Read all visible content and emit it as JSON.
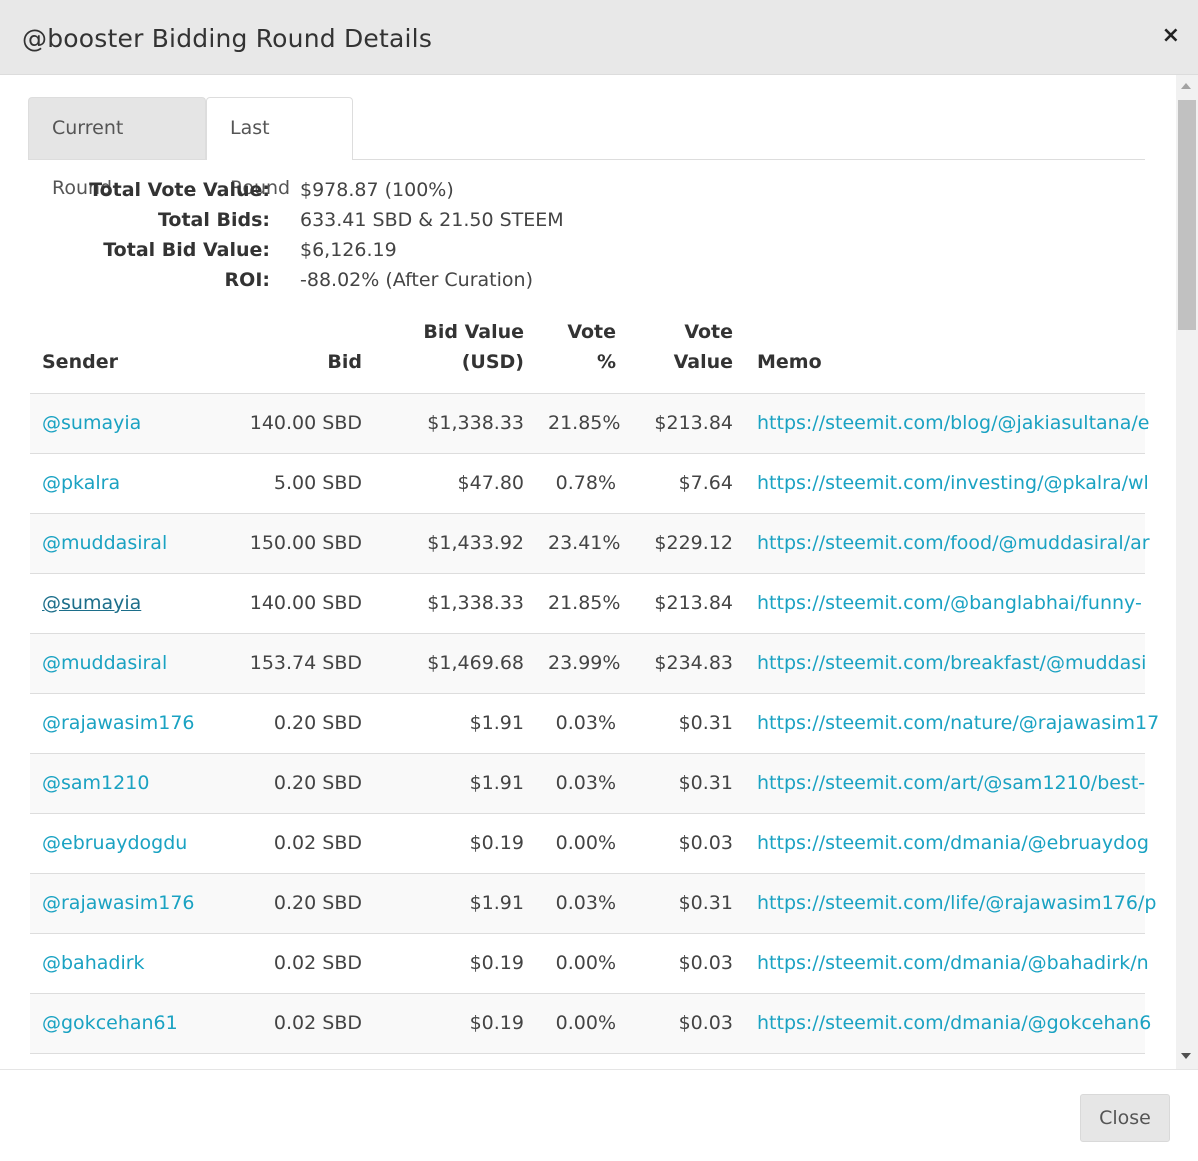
{
  "modal": {
    "title": "@booster Bidding Round Details",
    "close_symbol": "×"
  },
  "tabs": [
    {
      "label": "Current Round"
    },
    {
      "label": "Last Round"
    }
  ],
  "summary": [
    {
      "label": "Total Vote Value:",
      "value": "$978.87 (100%)"
    },
    {
      "label": "Total Bids:",
      "value": "633.41 SBD & 21.50 STEEM"
    },
    {
      "label": "Total Bid Value:",
      "value": "$6,126.19"
    },
    {
      "label": "ROI:",
      "value": "-88.02% (After Curation)"
    }
  ],
  "table": {
    "headers": {
      "sender": "Sender",
      "bid": "Bid",
      "bid_value_1": "Bid Value",
      "bid_value_2": "(USD)",
      "vote_pct": "Vote %",
      "vote_value_1": "Vote",
      "vote_value_2": "Value",
      "memo": "Memo"
    },
    "rows": [
      {
        "sender": "@sumayia",
        "bid": "140.00 SBD",
        "bid_value": "$1,338.33",
        "vote_pct": "21.85%",
        "vote_value": "$213.84",
        "memo": "https://steemit.com/blog/@jakiasultana/e"
      },
      {
        "sender": "@pkalra",
        "bid": "5.00 SBD",
        "bid_value": "$47.80",
        "vote_pct": "0.78%",
        "vote_value": "$7.64",
        "memo": "https://steemit.com/investing/@pkalra/wl"
      },
      {
        "sender": "@muddasiral",
        "bid": "150.00 SBD",
        "bid_value": "$1,433.92",
        "vote_pct": "23.41%",
        "vote_value": "$229.12",
        "memo": "https://steemit.com/food/@muddasiral/ar"
      },
      {
        "sender": "@sumayia",
        "bid": "140.00 SBD",
        "bid_value": "$1,338.33",
        "vote_pct": "21.85%",
        "vote_value": "$213.84",
        "memo": "https://steemit.com/@banglabhai/funny-"
      },
      {
        "sender": "@muddasiral",
        "bid": "153.74 SBD",
        "bid_value": "$1,469.68",
        "vote_pct": "23.99%",
        "vote_value": "$234.83",
        "memo": "https://steemit.com/breakfast/@muddasi"
      },
      {
        "sender": "@rajawasim176",
        "bid": "0.20 SBD",
        "bid_value": "$1.91",
        "vote_pct": "0.03%",
        "vote_value": "$0.31",
        "memo": "https://steemit.com/nature/@rajawasim17"
      },
      {
        "sender": "@sam1210",
        "bid": "0.20 SBD",
        "bid_value": "$1.91",
        "vote_pct": "0.03%",
        "vote_value": "$0.31",
        "memo": "https://steemit.com/art/@sam1210/best-"
      },
      {
        "sender": "@ebruaydogdu",
        "bid": "0.02 SBD",
        "bid_value": "$0.19",
        "vote_pct": "0.00%",
        "vote_value": "$0.03",
        "memo": "https://steemit.com/dmania/@ebruaydog"
      },
      {
        "sender": "@rajawasim176",
        "bid": "0.20 SBD",
        "bid_value": "$1.91",
        "vote_pct": "0.03%",
        "vote_value": "$0.31",
        "memo": "https://steemit.com/life/@rajawasim176/p"
      },
      {
        "sender": "@bahadirk",
        "bid": "0.02 SBD",
        "bid_value": "$0.19",
        "vote_pct": "0.00%",
        "vote_value": "$0.03",
        "memo": "https://steemit.com/dmania/@bahadirk/n"
      },
      {
        "sender": "@gokcehan61",
        "bid": "0.02 SBD",
        "bid_value": "$0.19",
        "vote_pct": "0.00%",
        "vote_value": "$0.03",
        "memo": "https://steemit.com/dmania/@gokcehan6"
      }
    ]
  },
  "footer": {
    "close_label": "Close"
  },
  "colors": {
    "link": "#1aa2c2",
    "header_bg": "#e8e8e8"
  }
}
